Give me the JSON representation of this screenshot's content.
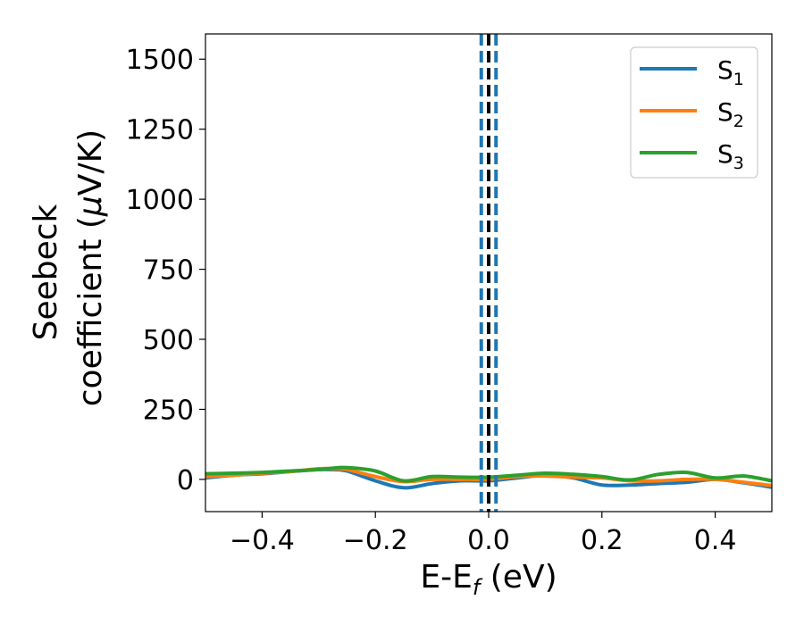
{
  "chart_data": {
    "type": "line",
    "xlabel": "E-E",
    "xlabel_sub": "f",
    "xlabel_unit": " (eV)",
    "ylabel_line1": "Seebeck",
    "ylabel_line2": "coefficient  (",
    "ylabel_mu": "μ",
    "ylabel_unit": "V/K)",
    "xlim": [
      -0.5,
      0.5
    ],
    "ylim": [
      -115,
      1590
    ],
    "x_ticks": [
      -0.4,
      -0.2,
      0.0,
      0.2,
      0.4
    ],
    "x_tick_labels": [
      "−0.4",
      "−0.2",
      "0.0",
      "0.2",
      "0.4"
    ],
    "y_ticks": [
      0,
      250,
      500,
      750,
      1000,
      1250,
      1500
    ],
    "y_tick_labels": [
      "0",
      "250",
      "500",
      "750",
      "1000",
      "1250",
      "1500"
    ],
    "legend_position": "top-right",
    "vertical_lines": [
      {
        "x": -0.013,
        "style": "dashed",
        "color": "#1f77b4"
      },
      {
        "x": 0.0,
        "style": "dashed",
        "color": "#000000"
      },
      {
        "x": 0.013,
        "style": "dashed",
        "color": "#1f77b4"
      }
    ],
    "x": [
      -0.5,
      -0.45,
      -0.4,
      -0.35,
      -0.3,
      -0.275,
      -0.25,
      -0.2,
      -0.15,
      -0.1,
      -0.05,
      0.0,
      0.05,
      0.1,
      0.15,
      0.2,
      0.25,
      0.3,
      0.35,
      0.4,
      0.45,
      0.5
    ],
    "series": [
      {
        "name": "S",
        "sub": "1",
        "color": "#1f77b4",
        "values": [
          5,
          15,
          20,
          28,
          35,
          35,
          30,
          -5,
          -30,
          -15,
          -5,
          -5,
          5,
          15,
          5,
          -20,
          -20,
          -15,
          -10,
          0,
          -12,
          -28
        ]
      },
      {
        "name": "S",
        "sub": "2",
        "color": "#ff7f0e",
        "values": [
          10,
          15,
          22,
          28,
          38,
          38,
          35,
          10,
          -8,
          0,
          0,
          0,
          10,
          12,
          8,
          5,
          -5,
          -5,
          0,
          0,
          -10,
          -22
        ]
      },
      {
        "name": "S",
        "sub": "3",
        "color": "#2ca02c",
        "values": [
          20,
          22,
          25,
          30,
          35,
          40,
          42,
          30,
          -5,
          10,
          8,
          8,
          15,
          22,
          18,
          10,
          -2,
          18,
          25,
          5,
          12,
          -5
        ]
      }
    ]
  }
}
